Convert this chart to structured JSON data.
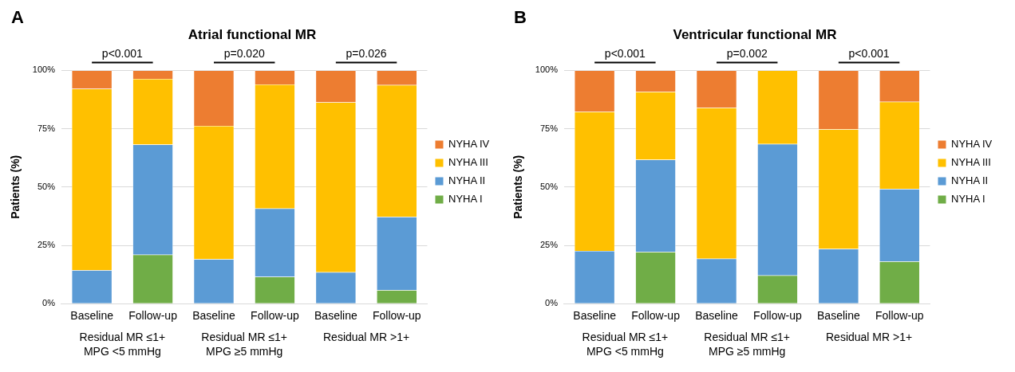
{
  "chart_data": [
    {
      "type": "bar",
      "title": "Atrial functional MR",
      "ylabel": "Patients (%)",
      "stacked": true,
      "legend": "right",
      "grid": "y",
      "categories": [
        "Baseline",
        "Follow-up",
        "Baseline",
        "Follow-up",
        "Baseline",
        "Follow-up"
      ],
      "series": [
        {
          "name": "NYHA I",
          "color": "#70ad47",
          "values": [
            0,
            21.0,
            0,
            11.5,
            0,
            5.8
          ]
        },
        {
          "name": "NYHA II",
          "color": "#5b9bd5",
          "values": [
            14.3,
            47.2,
            19.0,
            29.3,
            13.5,
            31.4
          ]
        },
        {
          "name": "NYHA III",
          "color": "#ffc000",
          "values": [
            77.8,
            28.2,
            57.2,
            53.2,
            72.8,
            56.5
          ]
        },
        {
          "name": "NYHA IV",
          "color": "#ed7d31",
          "values": [
            7.9,
            3.6,
            23.8,
            6.0,
            13.7,
            6.3
          ]
        }
      ],
      "ylim": [
        0,
        100
      ],
      "yticks": [
        {
          "value": 0,
          "label": "0%"
        },
        {
          "value": 25,
          "label": "25%"
        },
        {
          "value": 50,
          "label": "50%"
        },
        {
          "value": 75,
          "label": "75%"
        },
        {
          "value": 100,
          "label": "100%"
        }
      ],
      "annotations": [
        "A",
        "p<0.001",
        "p=0.020",
        "p=0.026",
        "Residual MR ≤1+\nMPG <5 mmHg",
        "Residual MR ≤1+\nMPG ≥5 mmHg",
        "Residual MR >1+"
      ]
    },
    {
      "type": "bar",
      "title": "Ventricular functional MR",
      "ylabel": "Patients (%)",
      "stacked": true,
      "legend": "right",
      "grid": "y",
      "categories": [
        "Baseline",
        "Follow-up",
        "Baseline",
        "Follow-up",
        "Baseline",
        "Follow-up"
      ],
      "series": [
        {
          "name": "NYHA I",
          "color": "#70ad47",
          "values": [
            0,
            22.2,
            0,
            12.1,
            0,
            18.1
          ]
        },
        {
          "name": "NYHA II",
          "color": "#5b9bd5",
          "values": [
            22.6,
            39.5,
            19.3,
            56.4,
            23.5,
            31.1
          ]
        },
        {
          "name": "NYHA III",
          "color": "#ffc000",
          "values": [
            59.7,
            29.1,
            64.7,
            31.5,
            51.3,
            37.4
          ]
        },
        {
          "name": "NYHA IV",
          "color": "#ed7d31",
          "values": [
            17.7,
            9.2,
            16.0,
            0,
            25.2,
            13.4
          ]
        }
      ],
      "ylim": [
        0,
        100
      ],
      "yticks": [
        {
          "value": 0,
          "label": "0%"
        },
        {
          "value": 25,
          "label": "25%"
        },
        {
          "value": 50,
          "label": "50%"
        },
        {
          "value": 75,
          "label": "75%"
        },
        {
          "value": 100,
          "label": "100%"
        }
      ],
      "annotations": [
        "B",
        "p<0.001",
        "p=0.002",
        "p<0.001",
        "Residual MR ≤1+\nMPG <5 mmHg",
        "Residual MR ≤1+\nMPG ≥5 mmHg",
        "Residual MR >1+"
      ]
    }
  ]
}
